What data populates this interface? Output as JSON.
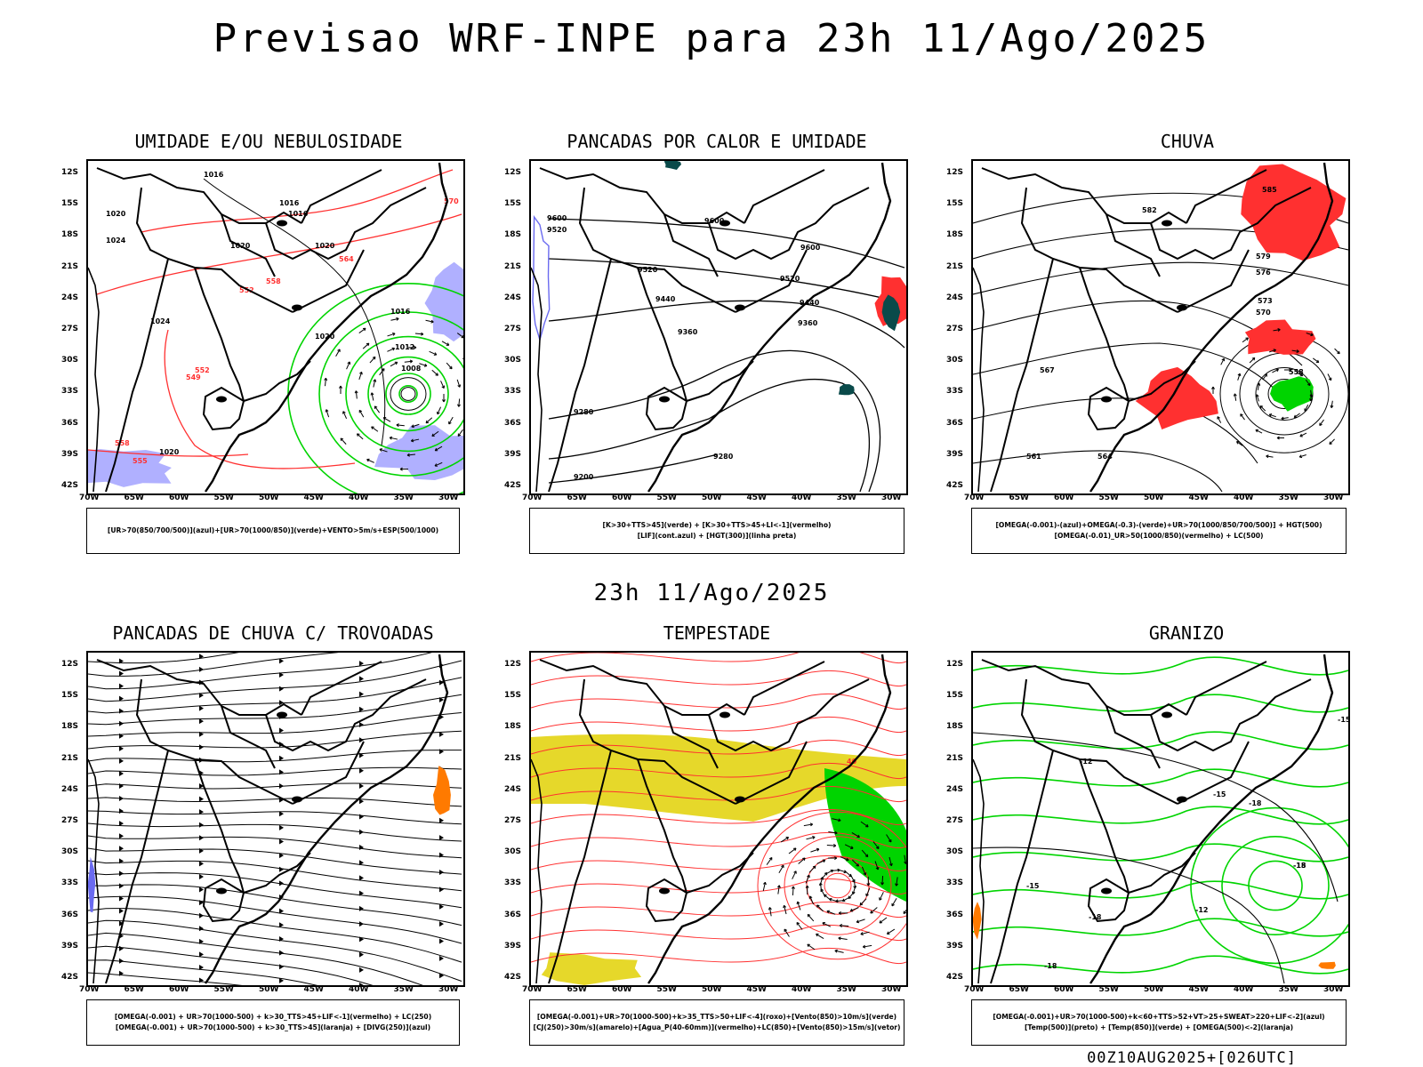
{
  "title": "Previsao WRF-INPE  para 23h 11/Ago/2025",
  "subtitle": "23h 11/Ago/2025",
  "footer": "00Z10AUG2025+[026UTC]",
  "lat_ticks": [
    "12S",
    "15S",
    "18S",
    "21S",
    "24S",
    "27S",
    "30S",
    "33S",
    "36S",
    "39S",
    "42S"
  ],
  "lon_ticks": [
    "70W",
    "65W",
    "60W",
    "55W",
    "50W",
    "45W",
    "40W",
    "35W",
    "30W"
  ],
  "colors": {
    "blue": "#6a6af0",
    "green": "#00d400",
    "red": "#ff3030",
    "dark_teal": "#0a4a4a",
    "yellow": "#e6d82a",
    "orange": "#ff7a00",
    "shade_blue": "#b0b0ff"
  },
  "panels": [
    {
      "id": "umidade",
      "title": "UMIDADE E/OU NEBULOSIDADE",
      "legend": [
        "[UR>70(850/700/500)](azul)+[UR>70(1000/850)](verde)+VENTO>5m/s+ESP(500/1000)"
      ],
      "labels": [
        "1016",
        "1020",
        "1024",
        "1020",
        "1016",
        "1016",
        "1020",
        "1024",
        "1020",
        "1016",
        "1012",
        "1008",
        "1020",
        "570",
        "564",
        "558",
        "552",
        "549",
        "552",
        "555",
        "558"
      ]
    },
    {
      "id": "pancadas-calor",
      "title": "PANCADAS POR CALOR E UMIDADE",
      "legend": [
        "[K>30+TTS>45](verde) + [K>30+TTS>45+LI<-1](vermelho)",
        "[LIF](cont.azul) + [HGT(300)](linha preta)"
      ],
      "labels": [
        "9600",
        "9600",
        "9520",
        "9600",
        "9520",
        "9520",
        "9440",
        "9440",
        "9360",
        "9360",
        "9280",
        "9280",
        "9200"
      ]
    },
    {
      "id": "chuva",
      "title": "CHUVA",
      "legend": [
        "[OMEGA(-0.001)-(azul)+OMEGA(-0.3)-(verde)+UR>70(1000/850/700/500)] + HGT(500)",
        "[OMEGA(-0.01)_UR>50(1000/850)(vermelho) + LC(500)"
      ],
      "labels": [
        "585",
        "582",
        "579",
        "576",
        "573",
        "570",
        "567",
        "564",
        "561",
        "558"
      ]
    },
    {
      "id": "pancadas-trovoadas",
      "title": "PANCADAS DE CHUVA C/ TROVOADAS",
      "legend": [
        "[OMEGA(-0.001) + UR>70(1000-500) + k>30_TTS>45+LIF<-1](vermelho) + LC(250)",
        "[OMEGA(-0.001) + UR>70(1000-500) + k>30_TTS>45](laranja) + [DIVG(250)](azul)"
      ]
    },
    {
      "id": "tempestade",
      "title": "TEMPESTADE",
      "legend": [
        "[OMEGA(-0.001)+UR>70(1000-500)+k>35_TTS>50+LIF<-4](roxo)+[Vento(850)>10m/s](verde)",
        "[CJ(250)>30m/s](amarelo)+[Agua_P(40-60mm)](vermelho)+LC(850)+[Vento(850)>15m/s](vetor)"
      ],
      "labels": [
        "40"
      ]
    },
    {
      "id": "granizo",
      "title": "GRANIZO",
      "legend": [
        "[OMEGA(-0.001)+UR>70(1000-500)+k<60+TTS>52+VT>25+SWEAT>220+LIF<-2](azul)",
        "[Temp(500)](preto) + [Temp(850)](verde) + [OMEGA(500)<-2](laranja)"
      ],
      "labels": [
        "-12",
        "-15",
        "-18",
        "-12",
        "-15",
        "-18",
        "-15",
        "-18",
        "-15",
        "-18"
      ]
    }
  ]
}
